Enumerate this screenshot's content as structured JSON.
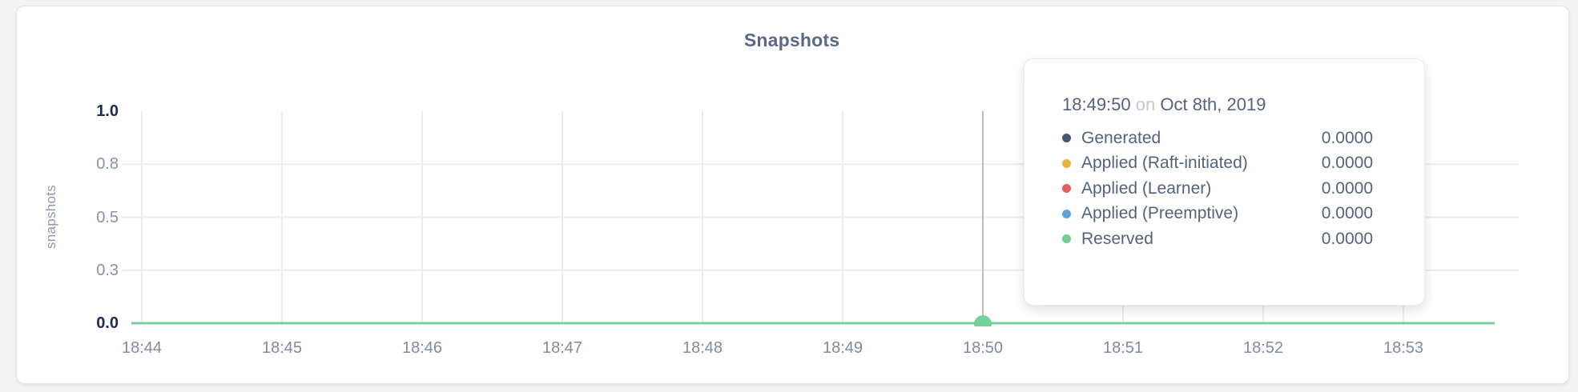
{
  "chart": {
    "title": "Snapshots",
    "y_axis_label": "snapshots"
  },
  "chart_data": {
    "type": "line",
    "title": "Snapshots",
    "xlabel": "",
    "ylabel": "snapshots",
    "x_ticks": [
      "18:44",
      "18:45",
      "18:46",
      "18:47",
      "18:48",
      "18:49",
      "18:50",
      "18:51",
      "18:52",
      "18:53"
    ],
    "y_ticks": [
      {
        "label": "1.0",
        "value": 1.0,
        "emphasis": true
      },
      {
        "label": "0.8",
        "value": 0.75,
        "emphasis": false
      },
      {
        "label": "0.5",
        "value": 0.5,
        "emphasis": false
      },
      {
        "label": "0.3",
        "value": 0.25,
        "emphasis": false
      },
      {
        "label": "0.0",
        "value": 0.0,
        "emphasis": true
      }
    ],
    "ylim": [
      0,
      1
    ],
    "grid": true,
    "legend_position": "tooltip",
    "series": [
      {
        "name": "Generated",
        "color": "#475872",
        "values": [
          0,
          0,
          0,
          0,
          0,
          0,
          0,
          0,
          0,
          0
        ]
      },
      {
        "name": "Applied (Raft-initiated)",
        "color": "#e8b43e",
        "values": [
          0,
          0,
          0,
          0,
          0,
          0,
          0,
          0,
          0,
          0
        ]
      },
      {
        "name": "Applied (Learner)",
        "color": "#e1605c",
        "values": [
          0,
          0,
          0,
          0,
          0,
          0,
          0,
          0,
          0,
          0
        ]
      },
      {
        "name": "Applied (Preemptive)",
        "color": "#5ba3db",
        "values": [
          0,
          0,
          0,
          0,
          0,
          0,
          0,
          0,
          0,
          0
        ]
      },
      {
        "name": "Reserved",
        "color": "#6fd092",
        "values": [
          0,
          0,
          0,
          0,
          0,
          0,
          0,
          0,
          0,
          0
        ]
      }
    ],
    "visible_line_color": "#77cf99",
    "gridline_color": "#ededee",
    "crosshair_color": "#bcbcbc",
    "hover": {
      "x_tick": "18:50",
      "time": "18:49:50",
      "value_at_hover": 0.0
    }
  },
  "tooltip": {
    "time": "18:49:50",
    "preposition": "on",
    "date": "Oct 8th, 2019",
    "rows": [
      {
        "label": "Generated",
        "value": "0.0000",
        "color": "#475872"
      },
      {
        "label": "Applied (Raft-initiated)",
        "value": "0.0000",
        "color": "#e8b43e"
      },
      {
        "label": "Applied (Learner)",
        "value": "0.0000",
        "color": "#e1605c"
      },
      {
        "label": "Applied (Preemptive)",
        "value": "0.0000",
        "color": "#5ba3db"
      },
      {
        "label": "Reserved",
        "value": "0.0000",
        "color": "#6fd092"
      }
    ]
  }
}
